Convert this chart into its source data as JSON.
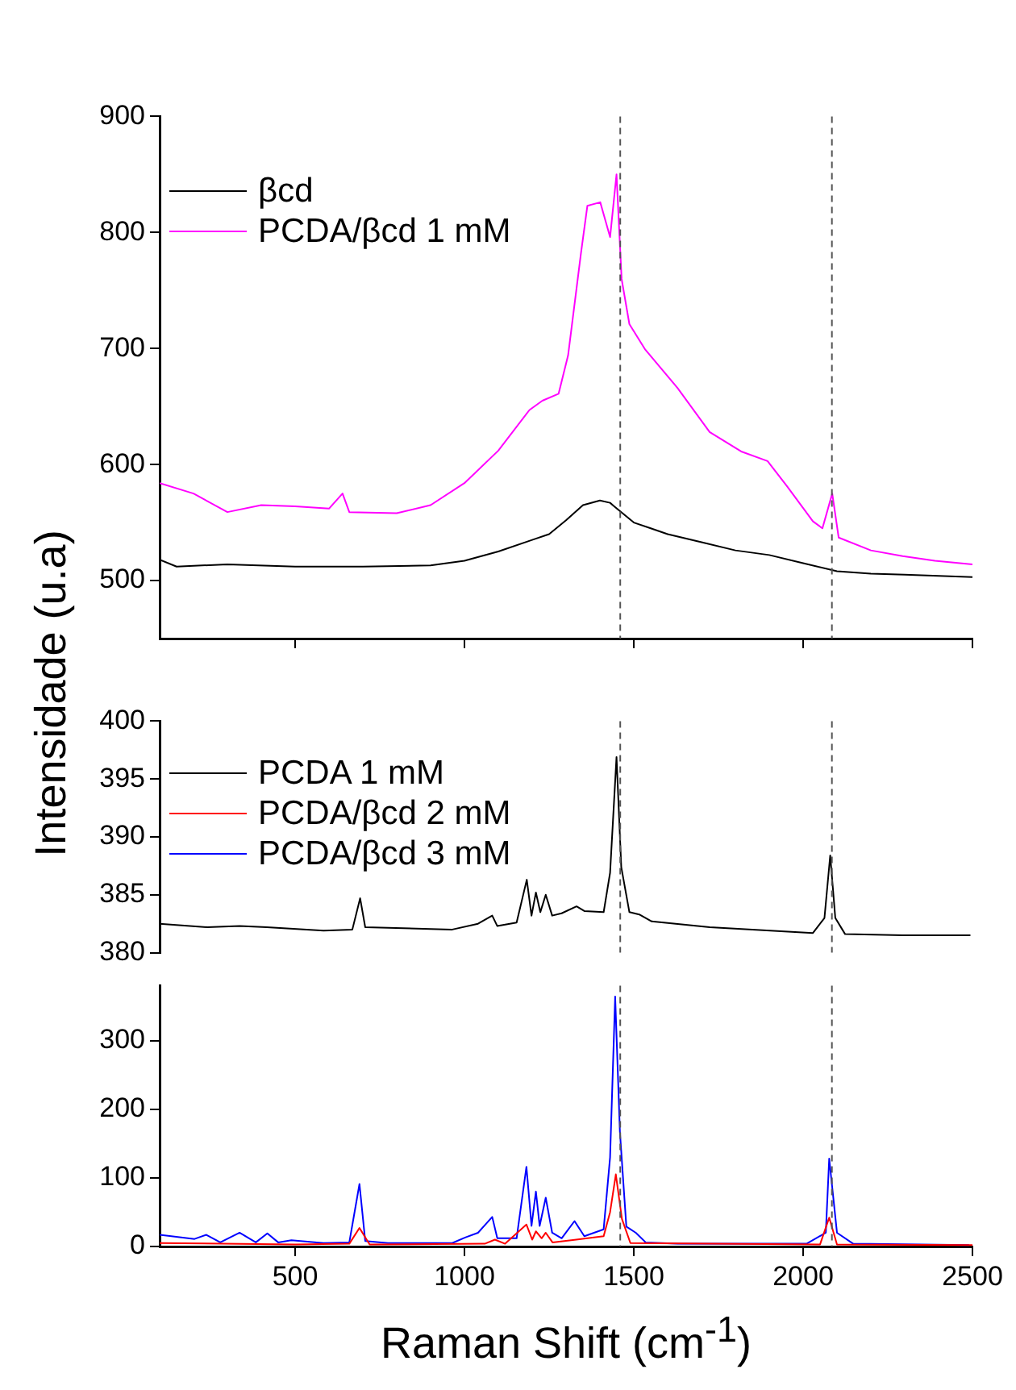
{
  "chart_data": [
    {
      "type": "line",
      "xlim": [
        100,
        2500
      ],
      "xticks": [
        500,
        1000,
        1500,
        2000,
        2500
      ],
      "ylim": [
        450,
        900
      ],
      "yticks": [
        500,
        600,
        700,
        800,
        900
      ],
      "tick_labels": "y",
      "legend": "top left",
      "grid": false,
      "line_style": "solid",
      "marker": "none",
      "series": [
        {
          "name": "βcd",
          "color": "#000000",
          "x": [
            100,
            150,
            300,
            500,
            700,
            900,
            1000,
            1100,
            1200,
            1250,
            1300,
            1350,
            1400,
            1430,
            1450,
            1500,
            1550,
            1600,
            1700,
            1800,
            1900,
            2000,
            2100,
            2200,
            2300,
            2400,
            2500
          ],
          "values": [
            518,
            512,
            514,
            512,
            512,
            513,
            517,
            525,
            535,
            540,
            552,
            565,
            569,
            567,
            562,
            550,
            545,
            540,
            533,
            526,
            522,
            515,
            508,
            506,
            505,
            504,
            503
          ]
        },
        {
          "name": "PCDA/βcd 1 mM",
          "color": "#ff00ff",
          "x": [
            100,
            200,
            300,
            400,
            500,
            600,
            640,
            660,
            800,
            900,
            1000,
            1100,
            1192,
            1230,
            1278,
            1306,
            1344,
            1363,
            1401,
            1430,
            1449,
            1464,
            1487,
            1534,
            1629,
            1724,
            1819,
            1895,
            1953,
            2029,
            2057,
            2086,
            2105,
            2200,
            2294,
            2389,
            2500
          ],
          "values": [
            584,
            575,
            559,
            565,
            564,
            562,
            575,
            559,
            558,
            565,
            584,
            612,
            647,
            655,
            661,
            694,
            782,
            823,
            826,
            796,
            850,
            760,
            721,
            699,
            666,
            628,
            611,
            603,
            581,
            551,
            545,
            575,
            537,
            526,
            521,
            517,
            514
          ]
        }
      ],
      "ref_lines": [
        {
          "axis": "x",
          "value": 1460,
          "color": "#555555",
          "line_style": "dashed"
        },
        {
          "axis": "x",
          "value": 2085,
          "color": "#555555",
          "line_style": "dashed"
        }
      ]
    },
    {
      "type": "line",
      "ylabel": "Intensidade (u.a)",
      "xlim": [
        100,
        2500
      ],
      "ylim": [
        380,
        400
      ],
      "yticks": [
        380,
        385,
        390,
        395,
        400
      ],
      "tick_labels": "y",
      "legend": "top left",
      "grid": false,
      "line_style": "solid",
      "marker": "none",
      "series": [
        {
          "name": "PCDA 1 mM",
          "color": "#000000",
          "x": [
            100,
            241,
            336,
            416,
            584,
            669,
            692,
            707,
            964,
            1040,
            1082,
            1097,
            1154,
            1184,
            1198,
            1211,
            1224,
            1240,
            1259,
            1287,
            1331,
            1354,
            1411,
            1430,
            1449,
            1463,
            1487,
            1516,
            1553,
            1724,
            2029,
            2063,
            2080,
            2095,
            2124,
            2294,
            2494
          ],
          "values": [
            382.5,
            382.2,
            382.3,
            382.2,
            381.9,
            382,
            384.7,
            382.2,
            382,
            382.5,
            383.2,
            382.3,
            382.6,
            386.3,
            383.2,
            385.2,
            383.5,
            385,
            383.2,
            383.4,
            384,
            383.6,
            383.5,
            386.9,
            396.9,
            387.4,
            383.5,
            383.3,
            382.7,
            382.2,
            381.7,
            383,
            388.4,
            383,
            381.6,
            381.5,
            381.5
          ]
        }
      ],
      "ref_lines": [
        {
          "axis": "x",
          "value": 1460,
          "color": "#555555",
          "line_style": "dashed"
        },
        {
          "axis": "x",
          "value": 2085,
          "color": "#555555",
          "line_style": "dashed"
        }
      ]
    },
    {
      "type": "line",
      "xlabel": "Raman Shift (cm$^{-1}$)",
      "xlim": [
        100,
        2500
      ],
      "xticks": [
        500,
        1000,
        1500,
        2000,
        2500
      ],
      "ylim": [
        0,
        380
      ],
      "yticks": [
        0,
        100,
        200,
        300
      ],
      "legend": "top left",
      "grid": false,
      "line_style": "solid",
      "marker": "none",
      "series": [
        {
          "name": "PCDA/βcd 2 mM",
          "color": "#ff0000",
          "x": [
            100,
            500,
            660,
            690,
            720,
            1060,
            1090,
            1120,
            1183,
            1200,
            1211,
            1228,
            1240,
            1260,
            1330,
            1411,
            1430,
            1447,
            1465,
            1490,
            2050,
            2077,
            2100,
            2500
          ],
          "values": [
            5,
            3,
            4,
            27,
            3,
            4,
            10,
            4,
            32,
            10,
            22,
            12,
            20,
            6,
            10,
            15,
            50,
            105,
            40,
            5,
            3,
            42,
            3,
            2
          ]
        },
        {
          "name": "PCDA/βcd 3 mM",
          "color": "#0000ff",
          "x": [
            100,
            203,
            238,
            279,
            336,
            384,
            418,
            450,
            489,
            584,
            660,
            690,
            707,
            774,
            964,
            1002,
            1040,
            1082,
            1097,
            1154,
            1183,
            1198,
            1211,
            1222,
            1240,
            1259,
            1287,
            1325,
            1354,
            1411,
            1430,
            1445,
            1459,
            1478,
            1506,
            1535,
            1630,
            2010,
            2067,
            2077,
            2100,
            2148,
            2490
          ],
          "values": [
            17,
            11,
            17,
            6,
            20,
            6,
            19,
            6,
            9,
            5,
            6,
            91,
            8,
            5,
            5,
            13,
            20,
            43,
            12,
            12,
            116,
            30,
            80,
            30,
            71,
            20,
            12,
            37,
            15,
            25,
            130,
            364,
            167,
            29,
            20,
            6,
            4,
            4,
            20,
            128,
            20,
            4,
            2
          ]
        }
      ],
      "ref_lines": [
        {
          "axis": "x",
          "value": 1460,
          "color": "#555555",
          "line_style": "dashed"
        },
        {
          "axis": "x",
          "value": 2085,
          "color": "#555555",
          "line_style": "dashed"
        }
      ]
    }
  ]
}
